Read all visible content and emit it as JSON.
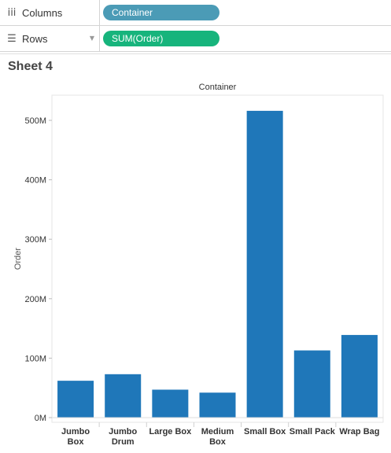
{
  "shelves": {
    "columns": {
      "label": "Columns",
      "icon": "iii",
      "pill": "Container",
      "pill_color": "#4b9bb6"
    },
    "rows": {
      "label": "Rows",
      "icon": "☰",
      "pill": "SUM(Order)",
      "pill_color": "#17b47c"
    }
  },
  "sheet": {
    "title": "Sheet 4"
  },
  "chart_data": {
    "type": "bar",
    "header": "Container",
    "ylabel": "Order",
    "bar_color": "#1f77b9",
    "ylim": [
      0,
      540
    ],
    "yticks": [
      0,
      100,
      200,
      300,
      400,
      500
    ],
    "ytick_labels": [
      "0M",
      "100M",
      "200M",
      "300M",
      "400M",
      "500M"
    ],
    "categories": [
      [
        "Jumbo",
        "Box"
      ],
      [
        "Jumbo",
        "Drum"
      ],
      [
        "Large Box"
      ],
      [
        "Medium",
        "Box"
      ],
      [
        "Small Box"
      ],
      [
        "Small Pack"
      ],
      [
        "Wrap Bag"
      ]
    ],
    "values": [
      62,
      73,
      47,
      42,
      516,
      113,
      139
    ]
  }
}
